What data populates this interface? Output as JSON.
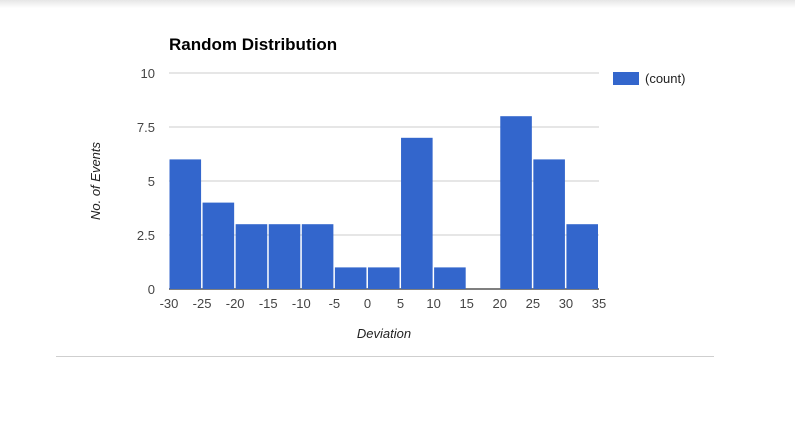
{
  "chart_data": {
    "type": "bar",
    "title": "Random Distribution",
    "xlabel": "Deviation",
    "ylabel": "No. of Events",
    "bin_edges": [
      -30,
      -25,
      -20,
      -15,
      -10,
      -5,
      0,
      5,
      10,
      15,
      20,
      25,
      30,
      35
    ],
    "series": [
      {
        "name": "(count)",
        "values": [
          6,
          4,
          3,
          3,
          3,
          1,
          1,
          7,
          1,
          0,
          8,
          6,
          3
        ]
      }
    ],
    "xlim": [
      -30,
      35
    ],
    "ylim": [
      0,
      10
    ],
    "x_ticks": [
      "-30",
      "-25",
      "-20",
      "-15",
      "-10",
      "-5",
      "0",
      "5",
      "10",
      "15",
      "20",
      "25",
      "30",
      "35"
    ],
    "y_ticks": [
      "0",
      "2.5",
      "5",
      "7.5",
      "10"
    ],
    "y_tick_values": [
      0,
      2.5,
      5,
      7.5,
      10
    ],
    "grid": true,
    "legend_position": "right",
    "colors": {
      "bar": "#3366cc",
      "grid": "#cccccc",
      "axis": "#333333",
      "text": "#444444"
    }
  }
}
